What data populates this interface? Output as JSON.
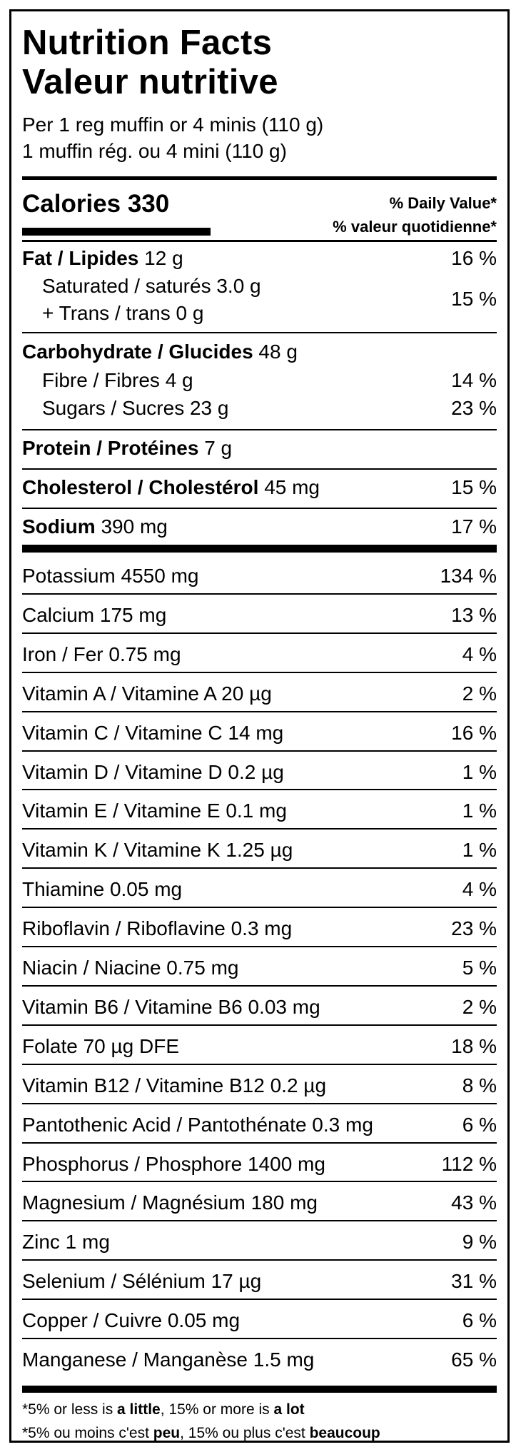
{
  "title": {
    "en": "Nutrition Facts",
    "fr": "Valeur nutritive"
  },
  "serving": {
    "en": "Per 1 reg muffin or 4 minis (110 g)",
    "fr": "1 muffin rég. ou 4 mini (110 g)"
  },
  "calories_label": "Calories 330",
  "dv_header": {
    "en": "% Daily Value*",
    "fr": "% valeur quotidienne*"
  },
  "fat": {
    "label": "Fat / Lipides",
    "amount": "12 g",
    "dv": "16 %"
  },
  "saturated": {
    "label": "Saturated / saturés 3.0 g"
  },
  "trans": {
    "label": "+ Trans / trans 0 g"
  },
  "sat_trans_dv": "15 %",
  "carb": {
    "label": "Carbohydrate / Glucides",
    "amount": "48 g"
  },
  "fibre": {
    "label": "Fibre / Fibres 4 g",
    "dv": "14 %"
  },
  "sugars": {
    "label": "Sugars / Sucres 23 g",
    "dv": "23 %"
  },
  "protein": {
    "label": "Protein / Protéines",
    "amount": "7 g"
  },
  "cholesterol": {
    "label": "Cholesterol / Cholestérol",
    "amount": "45 mg",
    "dv": "15 %"
  },
  "sodium": {
    "label": "Sodium",
    "amount": "390 mg",
    "dv": "17 %"
  },
  "micros": [
    {
      "label": "Potassium 4550 mg",
      "dv": "134 %"
    },
    {
      "label": "Calcium 175 mg",
      "dv": "13 %"
    },
    {
      "label": "Iron / Fer 0.75 mg",
      "dv": "4 %"
    },
    {
      "label": "Vitamin A / Vitamine A 20 µg",
      "dv": "2 %"
    },
    {
      "label": "Vitamin C / Vitamine C 14 mg",
      "dv": "16 %"
    },
    {
      "label": "Vitamin D / Vitamine D 0.2 µg",
      "dv": "1 %"
    },
    {
      "label": "Vitamin E / Vitamine E 0.1 mg",
      "dv": "1 %"
    },
    {
      "label": "Vitamin K / Vitamine K 1.25 µg",
      "dv": "1 %"
    },
    {
      "label": "Thiamine 0.05 mg",
      "dv": "4 %"
    },
    {
      "label": "Riboflavin / Riboflavine 0.3 mg",
      "dv": "23 %"
    },
    {
      "label": "Niacin / Niacine 0.75 mg",
      "dv": "5 %"
    },
    {
      "label": "Vitamin B6 / Vitamine B6 0.03 mg",
      "dv": "2 %"
    },
    {
      "label": "Folate 70 µg DFE",
      "dv": "18 %"
    },
    {
      "label": "Vitamin B12 / Vitamine B12 0.2 µg",
      "dv": "8 %"
    },
    {
      "label": "Pantothenic Acid / Pantothénate 0.3 mg",
      "dv": "6 %"
    },
    {
      "label": "Phosphorus / Phosphore 1400 mg",
      "dv": "112 %"
    },
    {
      "label": "Magnesium / Magnésium 180 mg",
      "dv": "43 %"
    },
    {
      "label": "Zinc 1 mg",
      "dv": "9 %"
    },
    {
      "label": "Selenium / Sélénium 17 µg",
      "dv": "31 %"
    },
    {
      "label": "Copper / Cuivre 0.05 mg",
      "dv": "6 %"
    },
    {
      "label": "Manganese / Manganèse 1.5 mg",
      "dv": "65 %"
    }
  ],
  "footnote": {
    "en": {
      "a": "*5% or less is ",
      "b": "a little",
      "c": ", 15% or more is ",
      "d": "a lot"
    },
    "fr": {
      "a": "*5% ou moins c'est ",
      "b": "peu",
      "c": ", 15% ou plus c'est ",
      "d": "beaucoup"
    }
  }
}
